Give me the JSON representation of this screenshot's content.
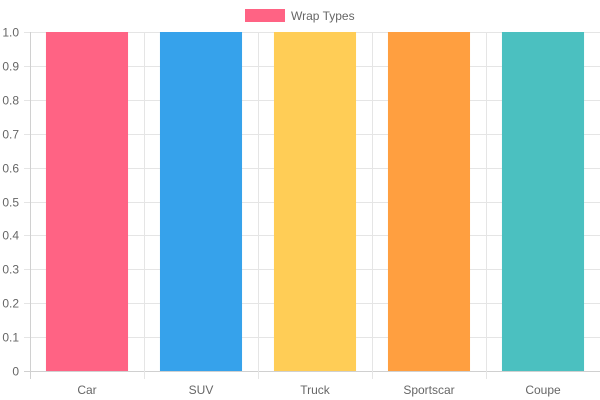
{
  "chart_data": {
    "type": "bar",
    "categories": [
      "Car",
      "SUV",
      "Truck",
      "Sportscar",
      "Coupe"
    ],
    "series": [
      {
        "name": "Wrap Types",
        "values": [
          1.0,
          1.0,
          1.0,
          1.0,
          1.0
        ]
      }
    ],
    "colors": [
      "#ff6384",
      "#36a2eb",
      "#ffcd56",
      "#ff9f40",
      "#4bc0c0"
    ],
    "legend": {
      "position": "top",
      "label": "Wrap Types",
      "swatch_color": "#ff6384"
    },
    "ylim": [
      0,
      1.0
    ],
    "yticks": [
      "0",
      "0.1",
      "0.2",
      "0.3",
      "0.4",
      "0.5",
      "0.6",
      "0.7",
      "0.8",
      "0.9",
      "1.0"
    ],
    "grid": true
  }
}
